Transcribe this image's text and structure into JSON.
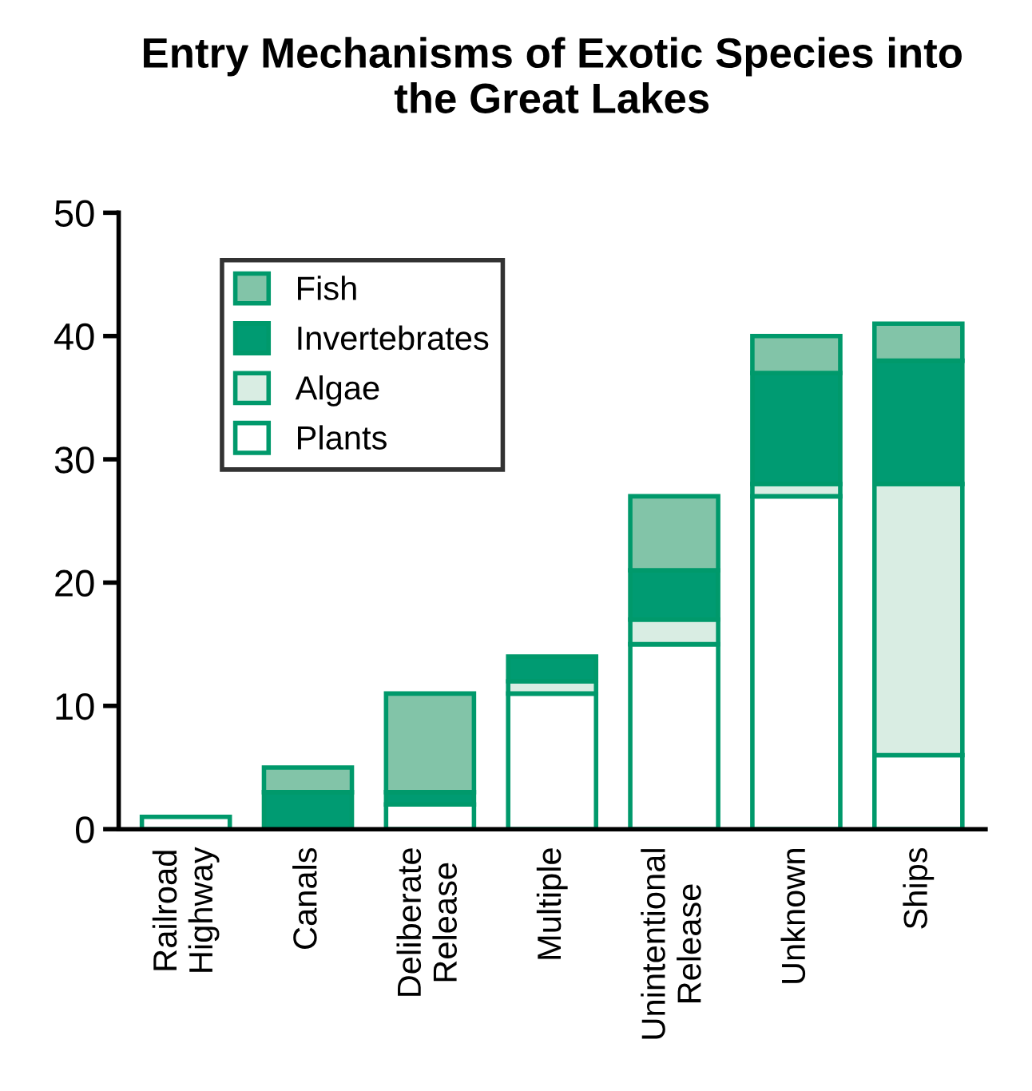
{
  "chart_data": {
    "type": "bar",
    "title": "Entry Mechanisms of Exotic Species into\nthe Great Lakes",
    "stacked": true,
    "categories": [
      "Railroad\nHighway",
      "Canals",
      "Deliberate\nRelease",
      "Multiple",
      "Unintentional\nRelease",
      "Unknown",
      "Ships"
    ],
    "series": [
      {
        "name": "Plants",
        "color": "#ffffff",
        "values": [
          1,
          null,
          2,
          11,
          15,
          27,
          6
        ]
      },
      {
        "name": "Algae",
        "color": "#d9ede3",
        "values": [
          null,
          null,
          null,
          1,
          2,
          1,
          22
        ]
      },
      {
        "name": "Invertebrates",
        "color": "#009b72",
        "values": [
          null,
          3,
          1,
          2,
          4,
          9,
          10
        ]
      },
      {
        "name": "Fish",
        "color": "#82c4a8",
        "values": [
          null,
          2,
          8,
          null,
          6,
          3,
          3
        ]
      }
    ],
    "ylim": [
      0,
      50
    ],
    "yticks": [
      0,
      10,
      20,
      30,
      40,
      50
    ],
    "grid": false,
    "legend": "top left"
  }
}
